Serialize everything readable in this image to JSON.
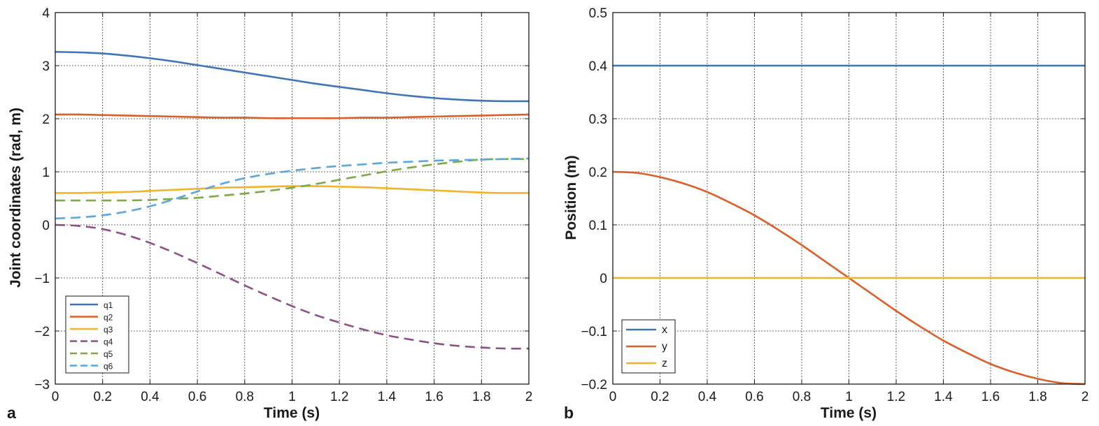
{
  "panels": [
    {
      "letter": "a"
    },
    {
      "letter": "b"
    }
  ],
  "chart_data": [
    {
      "type": "line",
      "title": "",
      "xlabel": "Time (s)",
      "ylabel": "Joint coordinates (rad, m)",
      "xlim": [
        0,
        2
      ],
      "ylim": [
        -3,
        4
      ],
      "xticks": [
        "0",
        "0.2",
        "0.4",
        "0.6",
        "0.8",
        "1",
        "1.2",
        "1.4",
        "1.6",
        "1.8",
        "2"
      ],
      "yticks": [
        "4",
        "3",
        "2",
        "1",
        "0",
        "−1",
        "−2",
        "−3"
      ],
      "grid": true,
      "legend_position": "bottom-left",
      "x": [
        0,
        0.1,
        0.2,
        0.3,
        0.4,
        0.5,
        0.6,
        0.7,
        0.8,
        0.9,
        1.0,
        1.1,
        1.2,
        1.3,
        1.4,
        1.5,
        1.6,
        1.7,
        1.8,
        1.9,
        2.0
      ],
      "series": [
        {
          "name": "q1",
          "color": "#3e74b8",
          "dash": "solid",
          "values": [
            3.26,
            3.25,
            3.23,
            3.19,
            3.14,
            3.08,
            3.01,
            2.94,
            2.87,
            2.8,
            2.73,
            2.66,
            2.6,
            2.54,
            2.48,
            2.43,
            2.39,
            2.36,
            2.34,
            2.33,
            2.33
          ]
        },
        {
          "name": "q2",
          "color": "#d95f2b",
          "dash": "solid",
          "values": [
            2.08,
            2.08,
            2.07,
            2.06,
            2.05,
            2.04,
            2.03,
            2.02,
            2.02,
            2.01,
            2.01,
            2.01,
            2.01,
            2.02,
            2.02,
            2.03,
            2.04,
            2.05,
            2.06,
            2.07,
            2.08
          ]
        },
        {
          "name": "q3",
          "color": "#efb529",
          "dash": "solid",
          "values": [
            0.6,
            0.6,
            0.61,
            0.62,
            0.64,
            0.66,
            0.68,
            0.7,
            0.71,
            0.72,
            0.73,
            0.73,
            0.72,
            0.71,
            0.69,
            0.67,
            0.65,
            0.63,
            0.61,
            0.6,
            0.6
          ]
        },
        {
          "name": "q4",
          "color": "#8e4f88",
          "dash": "dashed",
          "values": [
            0.0,
            -0.02,
            -0.08,
            -0.19,
            -0.34,
            -0.52,
            -0.72,
            -0.93,
            -1.14,
            -1.34,
            -1.53,
            -1.7,
            -1.84,
            -1.97,
            -2.08,
            -2.16,
            -2.23,
            -2.28,
            -2.31,
            -2.33,
            -2.33
          ]
        },
        {
          "name": "q5",
          "color": "#7ea845",
          "dash": "dashed",
          "values": [
            0.46,
            0.46,
            0.46,
            0.46,
            0.47,
            0.49,
            0.51,
            0.55,
            0.59,
            0.64,
            0.7,
            0.77,
            0.85,
            0.93,
            1.01,
            1.08,
            1.14,
            1.19,
            1.23,
            1.24,
            1.24
          ]
        },
        {
          "name": "q6",
          "color": "#5aa6dd",
          "dash": "dashed",
          "values": [
            0.12,
            0.14,
            0.18,
            0.25,
            0.35,
            0.48,
            0.63,
            0.77,
            0.88,
            0.96,
            1.02,
            1.07,
            1.11,
            1.14,
            1.17,
            1.19,
            1.21,
            1.22,
            1.23,
            1.24,
            1.25
          ]
        }
      ]
    },
    {
      "type": "line",
      "title": "",
      "xlabel": "Time (s)",
      "ylabel": "Position (m)",
      "xlim": [
        0,
        2
      ],
      "ylim": [
        -0.2,
        0.5
      ],
      "xticks": [
        "0",
        "0.2",
        "0.4",
        "0.6",
        "0.8",
        "1",
        "1.2",
        "1.4",
        "1.6",
        "1.8",
        "2"
      ],
      "yticks": [
        "0.5",
        "0.4",
        "0.3",
        "0.2",
        "0.1",
        "0",
        "−0.1",
        "−0.2"
      ],
      "grid": true,
      "legend_position": "bottom-left",
      "x": [
        0,
        0.1,
        0.2,
        0.3,
        0.4,
        0.5,
        0.6,
        0.7,
        0.8,
        0.9,
        1.0,
        1.1,
        1.2,
        1.3,
        1.4,
        1.5,
        1.6,
        1.7,
        1.8,
        1.9,
        2.0
      ],
      "series": [
        {
          "name": "x",
          "color": "#3e74b8",
          "dash": "solid",
          "values": [
            0.4,
            0.4,
            0.4,
            0.4,
            0.4,
            0.4,
            0.4,
            0.4,
            0.4,
            0.4,
            0.4,
            0.4,
            0.4,
            0.4,
            0.4,
            0.4,
            0.4,
            0.4,
            0.4,
            0.4,
            0.4
          ]
        },
        {
          "name": "y",
          "color": "#d95f2b",
          "dash": "solid",
          "values": [
            0.2,
            0.198,
            0.19,
            0.178,
            0.162,
            0.141,
            0.118,
            0.091,
            0.062,
            0.031,
            0.0,
            -0.031,
            -0.062,
            -0.091,
            -0.118,
            -0.141,
            -0.162,
            -0.178,
            -0.19,
            -0.198,
            -0.2
          ]
        },
        {
          "name": "z",
          "color": "#efb529",
          "dash": "solid",
          "values": [
            0,
            0,
            0,
            0,
            0,
            0,
            0,
            0,
            0,
            0,
            0,
            0,
            0,
            0,
            0,
            0,
            0,
            0,
            0,
            0,
            0
          ]
        }
      ]
    }
  ]
}
